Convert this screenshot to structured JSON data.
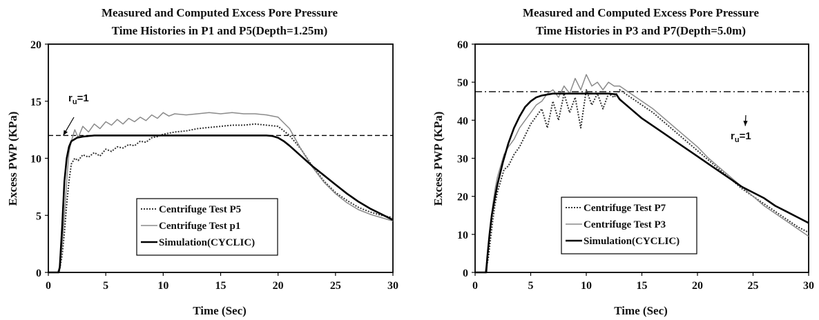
{
  "chart_data": [
    {
      "type": "line",
      "title_lines": [
        "Measured and Computed Excess Pore Pressure",
        "Time Histories in P1 and P5(Depth=1.25m)"
      ],
      "xlabel": "Time (Sec)",
      "ylabel": "Excess PWP (KPa)",
      "xlim": [
        0,
        30
      ],
      "ylim": [
        0,
        20
      ],
      "xticks": [
        0,
        5,
        10,
        15,
        20,
        25,
        30
      ],
      "yticks": [
        0,
        5,
        10,
        15,
        20
      ],
      "reference_line": {
        "y": 12,
        "style": "dashed"
      },
      "annotation": {
        "text": "r",
        "sub": "u",
        "suffix": "=1",
        "points_to": [
          1.3,
          12
        ]
      },
      "legend": {
        "placement": "bottom-center"
      },
      "series": [
        {
          "name": "Centrifuge Test P5",
          "style": "dotted",
          "color": "#333333",
          "x": [
            0,
            0.8,
            1.0,
            1.2,
            1.4,
            1.6,
            1.8,
            2.0,
            2.3,
            2.6,
            3.0,
            3.5,
            4,
            4.5,
            5,
            5.5,
            6,
            6.5,
            7,
            7.5,
            8,
            8.5,
            9,
            9.5,
            10,
            10.5,
            11,
            12,
            13,
            14,
            15,
            16,
            17,
            18,
            19,
            20,
            21,
            22,
            23,
            24,
            25,
            26,
            27,
            28,
            29,
            30
          ],
          "y": [
            0,
            0,
            0.3,
            1.5,
            3.5,
            6,
            8,
            9.5,
            10,
            9.8,
            10.3,
            10.1,
            10.5,
            10.2,
            10.8,
            10.6,
            11.0,
            10.9,
            11.2,
            11.1,
            11.5,
            11.4,
            11.8,
            11.9,
            12.1,
            12.2,
            12.3,
            12.4,
            12.6,
            12.7,
            12.8,
            12.9,
            12.9,
            13.0,
            12.9,
            12.8,
            12.0,
            10.8,
            9.3,
            8.0,
            7.0,
            6.3,
            5.7,
            5.3,
            5.0,
            4.8
          ]
        },
        {
          "name": "Centrifuge Test p1",
          "style": "solid",
          "color": "#8a8a8a",
          "x": [
            0,
            0.8,
            1.0,
            1.2,
            1.4,
            1.6,
            1.8,
            2.0,
            2.3,
            2.6,
            3.0,
            3.5,
            4,
            4.5,
            5,
            5.5,
            6,
            6.5,
            7,
            7.5,
            8,
            8.5,
            9,
            9.5,
            10,
            10.5,
            11,
            12,
            13,
            14,
            15,
            16,
            17,
            18,
            19,
            20,
            21,
            22,
            23,
            24,
            25,
            26,
            27,
            28,
            29,
            30
          ],
          "y": [
            0,
            0,
            0.5,
            2.5,
            5,
            8,
            10.5,
            11.5,
            12.5,
            11.8,
            12.8,
            12.3,
            13.0,
            12.6,
            13.2,
            12.9,
            13.4,
            13.0,
            13.5,
            13.2,
            13.6,
            13.3,
            13.8,
            13.5,
            14.0,
            13.7,
            13.9,
            13.8,
            13.9,
            14.0,
            13.9,
            14.0,
            13.9,
            13.9,
            13.8,
            13.6,
            12.6,
            10.8,
            9.2,
            7.9,
            6.9,
            6.1,
            5.5,
            5.1,
            4.8,
            4.5
          ]
        },
        {
          "name": "Simulation(CYCLIC)",
          "style": "solid-thick",
          "color": "#000000",
          "x": [
            0,
            0.9,
            1.0,
            1.2,
            1.4,
            1.6,
            1.8,
            2.0,
            2.5,
            3,
            4,
            5,
            6,
            7,
            8,
            9,
            10,
            11,
            12,
            13,
            14,
            15,
            16,
            17,
            18,
            19,
            19.5,
            20,
            20.5,
            21,
            22,
            23,
            24,
            25,
            26,
            27,
            28,
            29,
            30
          ],
          "y": [
            0,
            0,
            0.5,
            4,
            8,
            10,
            11.0,
            11.5,
            11.8,
            11.9,
            12.0,
            12.0,
            12.0,
            12.0,
            12.0,
            12.0,
            12.0,
            12.0,
            12.0,
            12.0,
            12.0,
            12.0,
            12.0,
            12.0,
            12.0,
            12.0,
            11.95,
            11.8,
            11.5,
            11.1,
            10.2,
            9.3,
            8.5,
            7.7,
            6.9,
            6.2,
            5.6,
            5.1,
            4.6
          ]
        }
      ]
    },
    {
      "type": "line",
      "title_lines": [
        "Measured and Computed Excess Pore Pressure",
        "Time Histories in P3 and P7(Depth=5.0m)"
      ],
      "xlabel": "Time (Sec)",
      "ylabel": "Excess PWP (KPa)",
      "xlim": [
        0,
        30
      ],
      "ylim": [
        0,
        60
      ],
      "xticks": [
        0,
        5,
        10,
        15,
        20,
        25,
        30
      ],
      "yticks": [
        0,
        10,
        20,
        30,
        40,
        50,
        60
      ],
      "reference_line": {
        "y": 47.5,
        "style": "dash-dot"
      },
      "annotation": {
        "text": "r",
        "sub": "u",
        "suffix": "=1",
        "points_to": [
          24.3,
          38.5
        ]
      },
      "legend": {
        "placement": "bottom-center"
      },
      "series": [
        {
          "name": "Centrifuge Test P7",
          "style": "dotted",
          "color": "#333333",
          "x": [
            0,
            0.9,
            1.0,
            1.2,
            1.4,
            1.6,
            1.8,
            2.0,
            2.3,
            2.6,
            3.0,
            3.5,
            4,
            4.5,
            5,
            5.5,
            6,
            6.5,
            7,
            7.5,
            8,
            8.5,
            9,
            9.5,
            10,
            10.5,
            11,
            11.5,
            12,
            12.5,
            13,
            14,
            15,
            16,
            17,
            18,
            19,
            20,
            21,
            22,
            23,
            24,
            25,
            26,
            27,
            28,
            29,
            30
          ],
          "y": [
            0,
            0,
            1,
            4,
            9,
            14,
            18,
            21,
            24,
            27,
            28,
            31,
            33,
            36,
            39,
            41,
            43,
            38,
            45,
            40,
            47,
            42,
            46,
            38,
            48,
            44,
            47,
            43,
            47,
            46,
            48,
            46,
            44,
            42,
            39.5,
            37,
            34.5,
            32,
            29.5,
            27,
            24.5,
            22,
            20,
            18,
            16,
            14,
            12,
            10.5
          ]
        },
        {
          "name": "Centrifuge Test P3",
          "style": "solid",
          "color": "#8a8a8a",
          "x": [
            0,
            0.9,
            1.0,
            1.2,
            1.4,
            1.6,
            1.8,
            2.0,
            2.3,
            2.6,
            3.0,
            3.5,
            4,
            4.5,
            5,
            5.5,
            6,
            6.5,
            7,
            7.5,
            8,
            8.5,
            9,
            9.5,
            10,
            10.5,
            11,
            11.5,
            12,
            12.5,
            13,
            14,
            15,
            16,
            17,
            18,
            19,
            20,
            21,
            22,
            23,
            24,
            25,
            26,
            27,
            28,
            29,
            30
          ],
          "y": [
            0,
            0,
            2,
            7,
            13,
            18,
            22,
            25,
            28,
            31,
            33,
            35,
            38,
            40,
            42,
            44,
            45,
            47,
            48,
            46,
            49,
            47,
            51,
            48,
            52,
            49,
            50,
            48,
            50,
            49,
            49,
            47,
            45,
            43,
            40.5,
            38,
            35.5,
            33,
            30,
            27.5,
            25,
            22.5,
            20,
            17.5,
            15.5,
            13.5,
            11.5,
            9.5
          ]
        },
        {
          "name": "Simulation(CYCLIC)",
          "style": "solid-thick",
          "color": "#000000",
          "x": [
            0,
            1.0,
            1.1,
            1.3,
            1.5,
            1.8,
            2.0,
            2.5,
            3,
            3.5,
            4,
            4.5,
            5,
            5.5,
            6,
            7,
            8,
            9,
            10,
            11,
            12,
            12.7,
            13,
            14,
            15,
            16,
            17,
            18,
            19,
            20,
            21,
            22,
            23,
            24,
            25,
            26,
            27,
            28,
            29,
            30
          ],
          "y": [
            0,
            0,
            4,
            10,
            15,
            20,
            23,
            29,
            34,
            38,
            41,
            43.5,
            45,
            46,
            46.5,
            47,
            47,
            47,
            47,
            47,
            47,
            46.8,
            45.5,
            43,
            40.5,
            38.5,
            36.5,
            34.5,
            32.5,
            30.5,
            28.5,
            26.5,
            24.5,
            22.5,
            21,
            19.5,
            17.5,
            16,
            14.5,
            13
          ]
        }
      ]
    }
  ]
}
